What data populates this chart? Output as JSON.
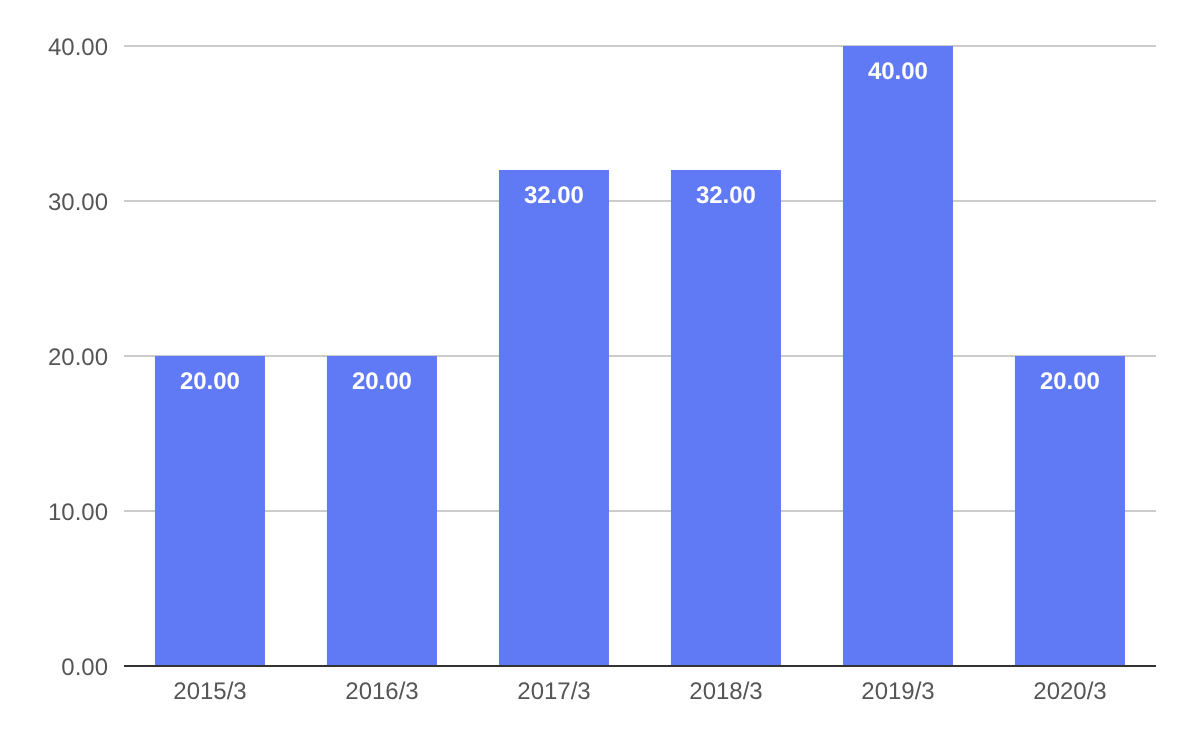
{
  "chart_data": {
    "type": "bar",
    "categories": [
      "2015/3",
      "2016/3",
      "2017/3",
      "2018/3",
      "2019/3",
      "2020/3"
    ],
    "values": [
      20,
      20,
      32,
      32,
      40,
      20
    ],
    "value_labels": [
      "20.00",
      "20.00",
      "32.00",
      "32.00",
      "40.00",
      "20.00"
    ],
    "color": "#6079f5",
    "ylim": [
      0,
      40
    ],
    "yticks": [
      {
        "value": 0,
        "label": "0.00"
      },
      {
        "value": 10,
        "label": "10.00"
      },
      {
        "value": 20,
        "label": "20.00"
      },
      {
        "value": 30,
        "label": "30.00"
      },
      {
        "value": 40,
        "label": "40.00"
      }
    ],
    "grid": "y"
  }
}
